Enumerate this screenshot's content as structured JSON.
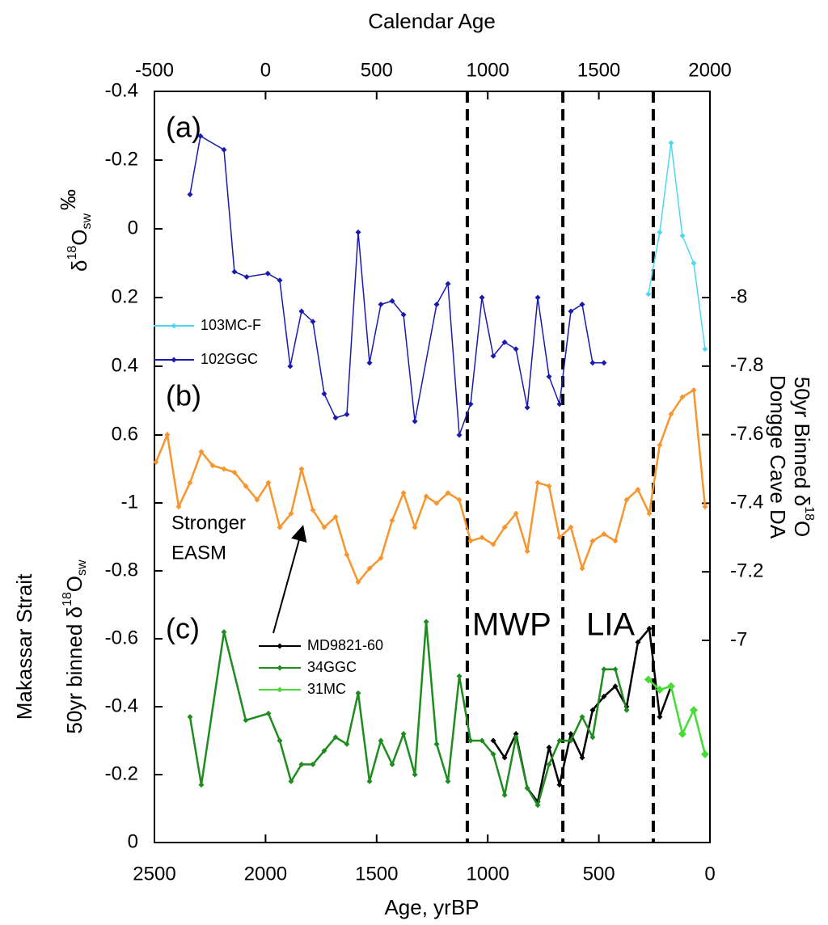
{
  "chart_data": {
    "type": "line",
    "xlabel": "Age, yrBP",
    "xlim": [
      2500,
      0
    ],
    "xticks": [
      2500,
      2000,
      1500,
      1000,
      500,
      0
    ],
    "x2label": "Calendar Age",
    "x2lim": [
      -500,
      2000
    ],
    "x2ticks": [
      -500,
      0,
      500,
      1000,
      1500,
      2000
    ],
    "ylabel": [
      "δ",
      "18",
      "O",
      "sw",
      "‰"
    ],
    "ylim": [
      0.6,
      -0.4
    ],
    "yticks": [
      -0.4,
      -0.2,
      0,
      0.2,
      0.4,
      0.6
    ],
    "y2label": [
      "50yr Binned δ",
      "18",
      "O",
      "Dongge Cave DA"
    ],
    "y2lim": [
      -7,
      -8
    ],
    "y2ticks": [
      -8,
      -7.8,
      -7.6,
      -7.4,
      -7.2,
      -7
    ],
    "y3label": [
      "Makassar Strait",
      "50yr binned δ",
      "18",
      "O",
      "sw"
    ],
    "y3lim": [
      0,
      -1
    ],
    "y3ticks": [
      -1,
      -0.8,
      -0.6,
      -0.4,
      -0.2,
      0
    ],
    "panel_labels": [
      "(a)",
      "(b)",
      "(c)"
    ],
    "annotations": [
      "Stronger",
      "EASM",
      "MWP",
      "LIA"
    ],
    "vlines": [
      1092,
      662,
      255
    ],
    "series": [
      {
        "name": "103MC-F",
        "color": "#4fd8ee",
        "axis": "y",
        "x": [
          277,
          226,
          175,
          124,
          73,
          22
        ],
        "values": [
          0.19,
          0.01,
          -0.25,
          0.02,
          0.1,
          0.35
        ]
      },
      {
        "name": "102GGC",
        "color": "#1a1aae",
        "axis": "y",
        "x": [
          2340,
          2293,
          2187,
          2140,
          2085,
          1990,
          1936,
          1889,
          1838,
          1787,
          1736,
          1685,
          1634,
          1583,
          1532,
          1481,
          1430,
          1379,
          1328,
          1230,
          1179,
          1128,
          1077,
          1026,
          975,
          924,
          873,
          822,
          775,
          724,
          677,
          626,
          575,
          528,
          477
        ],
        "values": [
          -0.1,
          -0.27,
          -0.23,
          0.125,
          0.14,
          0.13,
          0.15,
          0.4,
          0.24,
          0.27,
          0.48,
          0.55,
          0.54,
          0.01,
          0.39,
          0.22,
          0.21,
          0.25,
          0.56,
          0.22,
          0.16,
          0.6,
          0.51,
          0.2,
          0.37,
          0.33,
          0.35,
          0.52,
          0.2,
          0.43,
          0.51,
          0.24,
          0.22,
          0.39,
          0.39
        ]
      },
      {
        "color": "#f7962e",
        "axis": "y2",
        "x": [
          2493,
          2442,
          2391,
          2340,
          2289,
          2238,
          2187,
          2140,
          2089,
          2038,
          1987,
          1936,
          1885,
          1838,
          1787,
          1736,
          1685,
          1634,
          1583,
          1532,
          1481,
          1430,
          1379,
          1328,
          1277,
          1230,
          1179,
          1128,
          1077,
          1026,
          975,
          924,
          873,
          822,
          775,
          724,
          677,
          626,
          575,
          528,
          477,
          426,
          375,
          324,
          273,
          226,
          175,
          124,
          73,
          22
        ],
        "values": [
          -7.52,
          -7.6,
          -7.39,
          -7.46,
          -7.55,
          -7.51,
          -7.5,
          -7.49,
          -7.45,
          -7.41,
          -7.46,
          -7.33,
          -7.37,
          -7.5,
          -7.38,
          -7.33,
          -7.36,
          -7.25,
          -7.17,
          -7.21,
          -7.24,
          -7.35,
          -7.43,
          -7.33,
          -7.42,
          -7.4,
          -7.43,
          -7.41,
          -7.29,
          -7.3,
          -7.28,
          -7.33,
          -7.37,
          -7.26,
          -7.46,
          -7.45,
          -7.3,
          -7.33,
          -7.21,
          -7.29,
          -7.31,
          -7.29,
          -7.41,
          -7.44,
          -7.37,
          -7.57,
          -7.66,
          -7.71,
          -7.73,
          -7.39
        ]
      },
      {
        "name": "MD9821-60",
        "color": "#000000",
        "axis": "y3",
        "x": [
          975,
          924,
          873,
          822,
          775,
          724,
          677,
          626,
          575,
          528,
          477,
          426,
          375,
          324,
          273,
          226,
          175
        ],
        "values": [
          -0.3,
          -0.25,
          -0.32,
          -0.16,
          -0.12,
          -0.28,
          -0.17,
          -0.32,
          -0.25,
          -0.39,
          -0.43,
          -0.46,
          -0.4,
          -0.59,
          -0.63,
          -0.37,
          -0.46
        ]
      },
      {
        "name": "34GGC",
        "color": "#1e8c1e",
        "axis": "y3",
        "x": [
          2340,
          2289,
          2187,
          2089,
          1987,
          1936,
          1885,
          1838,
          1787,
          1736,
          1685,
          1634,
          1583,
          1532,
          1481,
          1430,
          1379,
          1328,
          1277,
          1230,
          1179,
          1128,
          1077,
          1026,
          975,
          924,
          873,
          822,
          775,
          724,
          677,
          626,
          575,
          528,
          477,
          426,
          375
        ],
        "values": [
          -0.37,
          -0.17,
          -0.62,
          -0.36,
          -0.38,
          -0.3,
          -0.18,
          -0.23,
          -0.23,
          -0.27,
          -0.31,
          -0.29,
          -0.44,
          -0.18,
          -0.3,
          -0.23,
          -0.32,
          -0.2,
          -0.65,
          -0.29,
          -0.18,
          -0.49,
          -0.3,
          -0.3,
          -0.26,
          -0.14,
          -0.31,
          -0.16,
          -0.11,
          -0.23,
          -0.3,
          -0.3,
          -0.37,
          -0.31,
          -0.51,
          -0.51,
          -0.39
        ]
      },
      {
        "name": "31MC",
        "color": "#44dd33",
        "axis": "y3",
        "x": [
          277,
          226,
          175,
          124,
          73,
          22
        ],
        "values": [
          -0.48,
          -0.45,
          -0.46,
          -0.32,
          -0.39,
          -0.26
        ]
      }
    ]
  }
}
